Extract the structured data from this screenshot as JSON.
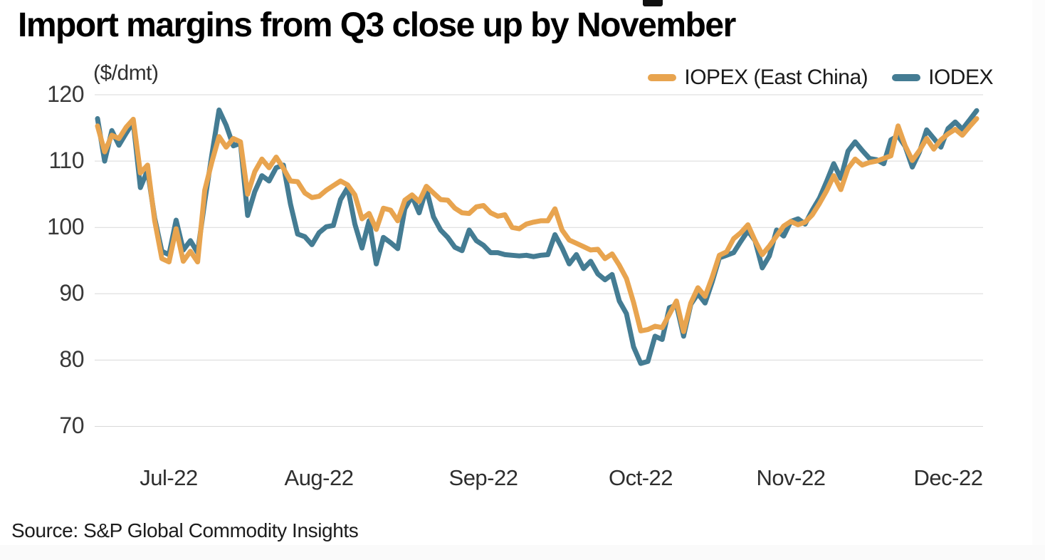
{
  "title": "Import margins from Q3 close up by November",
  "unit_label": "($/dmt)",
  "source": "Source: S&P Global Commodity Insights",
  "legend": [
    {
      "label": "IOPEX (East China)",
      "color": "#E8A44F"
    },
    {
      "label": "IODEX",
      "color": "#447C93"
    }
  ],
  "chart_data": {
    "type": "line",
    "title": "Import margins from Q3 close up by November",
    "ylabel": "($/dmt)",
    "xlabel": "",
    "ylim": [
      70,
      120
    ],
    "grid": true,
    "legend_position": "top-right",
    "yticks": [
      120,
      110,
      100,
      90,
      80,
      70
    ],
    "xticks": [
      "Jul-22",
      "Aug-22",
      "Sep-22",
      "Oct-22",
      "Nov-22",
      "Dec-22"
    ],
    "dates": [
      "2022-06-17",
      "2022-06-20",
      "2022-06-21",
      "2022-06-22",
      "2022-06-23",
      "2022-06-24",
      "2022-06-27",
      "2022-06-28",
      "2022-06-29",
      "2022-06-30",
      "2022-07-01",
      "2022-07-04",
      "2022-07-05",
      "2022-07-06",
      "2022-07-07",
      "2022-07-08",
      "2022-07-11",
      "2022-07-12",
      "2022-07-13",
      "2022-07-14",
      "2022-07-15",
      "2022-07-18",
      "2022-07-19",
      "2022-07-20",
      "2022-07-21",
      "2022-07-22",
      "2022-07-25",
      "2022-07-26",
      "2022-07-27",
      "2022-07-28",
      "2022-07-29",
      "2022-08-01",
      "2022-08-02",
      "2022-08-03",
      "2022-08-04",
      "2022-08-05",
      "2022-08-08",
      "2022-08-09",
      "2022-08-10",
      "2022-08-11",
      "2022-08-12",
      "2022-08-15",
      "2022-08-16",
      "2022-08-17",
      "2022-08-18",
      "2022-08-19",
      "2022-08-22",
      "2022-08-23",
      "2022-08-24",
      "2022-08-25",
      "2022-08-26",
      "2022-08-29",
      "2022-08-30",
      "2022-08-31",
      "2022-09-01",
      "2022-09-02",
      "2022-09-05",
      "2022-09-06",
      "2022-09-07",
      "2022-09-08",
      "2022-09-09",
      "2022-09-12",
      "2022-09-13",
      "2022-09-14",
      "2022-09-15",
      "2022-09-16",
      "2022-09-19",
      "2022-09-20",
      "2022-09-21",
      "2022-09-22",
      "2022-09-23",
      "2022-09-26",
      "2022-09-27",
      "2022-09-28",
      "2022-09-29",
      "2022-09-30",
      "2022-10-03",
      "2022-10-04",
      "2022-10-05",
      "2022-10-06",
      "2022-10-07",
      "2022-10-10",
      "2022-10-11",
      "2022-10-12",
      "2022-10-13",
      "2022-10-14",
      "2022-10-17",
      "2022-10-18",
      "2022-10-19",
      "2022-10-20",
      "2022-10-21",
      "2022-10-24",
      "2022-10-25",
      "2022-10-26",
      "2022-10-27",
      "2022-10-28",
      "2022-10-31",
      "2022-11-01",
      "2022-11-02",
      "2022-11-03",
      "2022-11-04",
      "2022-11-07",
      "2022-11-08",
      "2022-11-09",
      "2022-11-10",
      "2022-11-11",
      "2022-11-14",
      "2022-11-15",
      "2022-11-16",
      "2022-11-17",
      "2022-11-18",
      "2022-11-21",
      "2022-11-22",
      "2022-11-23",
      "2022-11-24",
      "2022-11-25",
      "2022-11-28",
      "2022-11-29",
      "2022-11-30",
      "2022-12-01",
      "2022-12-02",
      "2022-12-05",
      "2022-12-06",
      "2022-12-07"
    ],
    "series": [
      {
        "name": "IOPEX (East China)",
        "color": "#E8A44F",
        "values": [
          115.3,
          111.4,
          113.9,
          113.4,
          115.1,
          116.3,
          108.2,
          109.4,
          101.0,
          95.3,
          94.8,
          99.8,
          94.9,
          96.4,
          94.8,
          105.6,
          109.9,
          113.7,
          112.1,
          113.4,
          112.9,
          105.0,
          108.4,
          110.3,
          109.0,
          110.6,
          108.9,
          107.0,
          106.9,
          105.2,
          104.5,
          104.7,
          105.6,
          106.3,
          107.0,
          106.4,
          104.9,
          101.3,
          102.1,
          99.7,
          102.9,
          102.6,
          101.0,
          104.1,
          104.9,
          103.9,
          106.2,
          105.2,
          104.2,
          104.1,
          102.9,
          102.2,
          102.1,
          103.1,
          103.3,
          102.2,
          101.7,
          101.9,
          100.0,
          99.8,
          100.5,
          100.8,
          101.0,
          101.0,
          102.8,
          99.6,
          98.1,
          97.6,
          97.1,
          96.6,
          96.7,
          95.3,
          96.0,
          94.3,
          92.3,
          88.7,
          84.4,
          84.6,
          85.1,
          84.9,
          86.9,
          88.9,
          84.3,
          88.6,
          90.9,
          89.6,
          92.5,
          95.8,
          96.3,
          98.3,
          99.2,
          100.4,
          98.0,
          95.9,
          97.2,
          98.7,
          100.2,
          100.9,
          100.4,
          100.8,
          101.9,
          103.6,
          105.5,
          107.8,
          105.7,
          108.9,
          110.3,
          109.4,
          109.8,
          110.0,
          110.4,
          110.8,
          115.3,
          112.3,
          110.1,
          111.6,
          113.4,
          111.8,
          113.2,
          114.1,
          114.8,
          113.9,
          115.2,
          116.4
        ]
      },
      {
        "name": "IODEX",
        "color": "#447C93",
        "values": [
          116.4,
          110.0,
          114.6,
          112.4,
          114.2,
          115.9,
          106.0,
          108.6,
          101.4,
          96.4,
          95.9,
          101.1,
          96.6,
          98.0,
          96.2,
          103.9,
          111.0,
          117.7,
          115.4,
          112.3,
          112.7,
          101.8,
          105.4,
          107.8,
          107.0,
          109.0,
          109.4,
          103.5,
          99.0,
          98.6,
          97.4,
          99.2,
          100.1,
          100.3,
          104.2,
          106.0,
          100.5,
          96.9,
          101.0,
          94.5,
          98.5,
          97.7,
          96.8,
          102.8,
          104.7,
          102.2,
          105.8,
          101.6,
          99.6,
          98.5,
          97.0,
          96.5,
          99.6,
          98.0,
          97.3,
          96.2,
          96.2,
          95.9,
          95.8,
          95.7,
          95.8,
          95.6,
          95.8,
          95.9,
          98.9,
          96.9,
          94.5,
          95.9,
          93.8,
          94.9,
          93.0,
          92.1,
          92.9,
          88.9,
          87.0,
          82.0,
          79.5,
          79.8,
          83.6,
          83.1,
          87.9,
          88.3,
          83.6,
          88.4,
          90.0,
          88.6,
          91.8,
          95.4,
          95.8,
          96.2,
          97.9,
          99.5,
          98.0,
          93.9,
          95.7,
          99.6,
          98.7,
          100.9,
          101.3,
          100.5,
          102.6,
          104.4,
          106.9,
          109.6,
          107.4,
          111.5,
          112.9,
          111.6,
          110.4,
          110.2,
          109.6,
          113.2,
          113.8,
          112.2,
          109.1,
          111.4,
          114.7,
          113.4,
          112.1,
          114.9,
          115.9,
          114.8,
          116.2,
          117.6
        ]
      }
    ]
  }
}
